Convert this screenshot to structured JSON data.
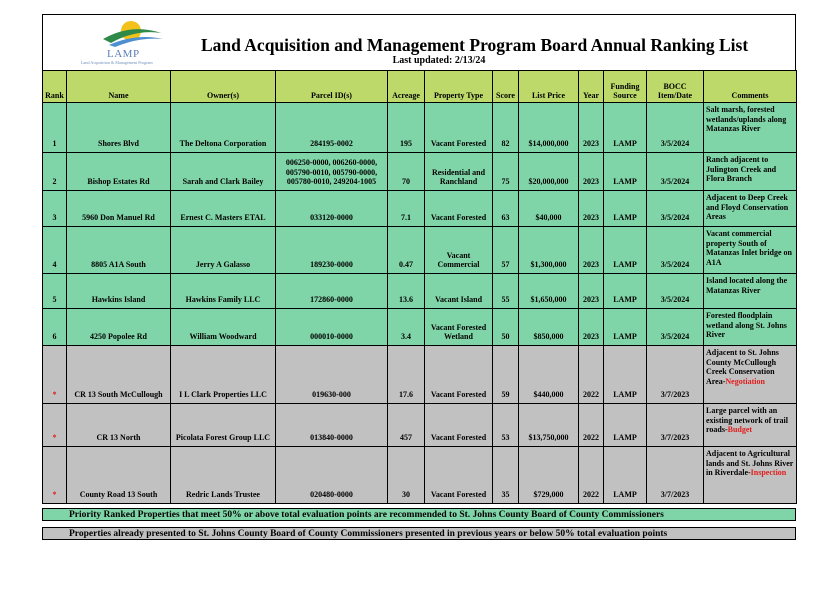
{
  "header": {
    "logo": "LAMP",
    "logo_tagline": "Land Acquisition & Management Program",
    "title": "Land Acquisition and Management Program Board Annual Ranking List",
    "subtitle": "Last updated: 2/13/24"
  },
  "table": {
    "columns": [
      "Rank",
      "Name",
      "Owner(s)",
      "Parcel ID(s)",
      "Acreage",
      "Property Type",
      "Score",
      "List Price",
      "Year",
      "Funding Source",
      "BOCC Item/Date",
      "Comments"
    ],
    "rows": [
      {
        "cells": [
          "1",
          "Shores Blvd",
          "The Deltona Corporation",
          "284195-0002",
          "195",
          "Vacant Forested",
          "82",
          "$14,000,000",
          "2023",
          "LAMP",
          "3/5/2024",
          "Salt marsh, forested wetlands/uplands along Matanzas River"
        ]
      },
      {
        "cells": [
          "2",
          "Bishop Estates Rd",
          "Sarah and Clark Bailey",
          "006250-0000, 006260-0000, 005790-0010, 005790-0000, 005780-0010, 249204-1005",
          "70",
          "Residential and Ranchland",
          "75",
          "$20,000,000",
          "2023",
          "LAMP",
          "3/5/2024",
          "Ranch adjacent to Julington Creek and Flora Branch"
        ]
      },
      {
        "cells": [
          "3",
          "5960 Don Manuel Rd",
          "Ernest C. Masters ETAL",
          "033120-0000",
          "7.1",
          "Vacant Forested",
          "63",
          "$40,000",
          "2023",
          "LAMP",
          "3/5/2024",
          "Adjacent to Deep Creek and Floyd Conservation Areas"
        ]
      },
      {
        "cells": [
          "4",
          "8805 A1A South",
          "Jerry A Galasso",
          "189230-0000",
          "0.47",
          "Vacant Commercial",
          "57",
          "$1,300,000",
          "2023",
          "LAMP",
          "3/5/2024",
          "Vacant commercial property South of Matanzas Inlet bridge on A1A"
        ]
      },
      {
        "cells": [
          "5",
          "Hawkins Island",
          "Hawkins Family LLC",
          "172860-0000",
          "13.6",
          "Vacant Island",
          "55",
          "$1,650,000",
          "2023",
          "LAMP",
          "3/5/2024",
          "Island located along the Matanzas River"
        ]
      },
      {
        "cells": [
          "6",
          "4250 Popolee Rd",
          "William Woodward",
          "000010-0000",
          "3.4",
          "Vacant Forested Wetland",
          "50",
          "$850,000",
          "2023",
          "LAMP",
          "3/5/2024",
          "Forested floodplain wetland along St. Johns River"
        ]
      },
      {
        "cells": [
          "*",
          "CR 13 South McCullough",
          "I L Clark Properties LLC",
          "019630-000",
          "17.6",
          "Vacant Forested",
          "59",
          "$440,000",
          "2022",
          "LAMP",
          "3/7/2023",
          "Adjacent to St. Johns County McCullough Creek Conservation Area-"
        ],
        "note": "Negotiation"
      },
      {
        "cells": [
          "*",
          "CR 13 North",
          "Picolata Forest Group LLC",
          "013840-0000",
          "457",
          "Vacant Forested",
          "53",
          "$13,750,000",
          "2022",
          "LAMP",
          "3/7/2023",
          "Large parcel with an existing network of trail roads-"
        ],
        "note": "Budget"
      },
      {
        "cells": [
          "*",
          "County Road 13 South",
          "Redric Lands Trustee",
          "020480-0000",
          "30",
          "Vacant Forested",
          "35",
          "$729,000",
          "2022",
          "LAMP",
          "3/7/2023",
          "Adjacent to Agricultural lands and St. Johns River in Riverdale-"
        ],
        "note": "Inspection"
      }
    ]
  },
  "legend": [
    "Priority Ranked Properties that meet 50% or above total evaluation points are recommended to St. Johns County Board of County Commissioners",
    "Properties already presented to St. Johns County Board of County Commissioners presented in previous years or below 50% total evaluation points"
  ]
}
